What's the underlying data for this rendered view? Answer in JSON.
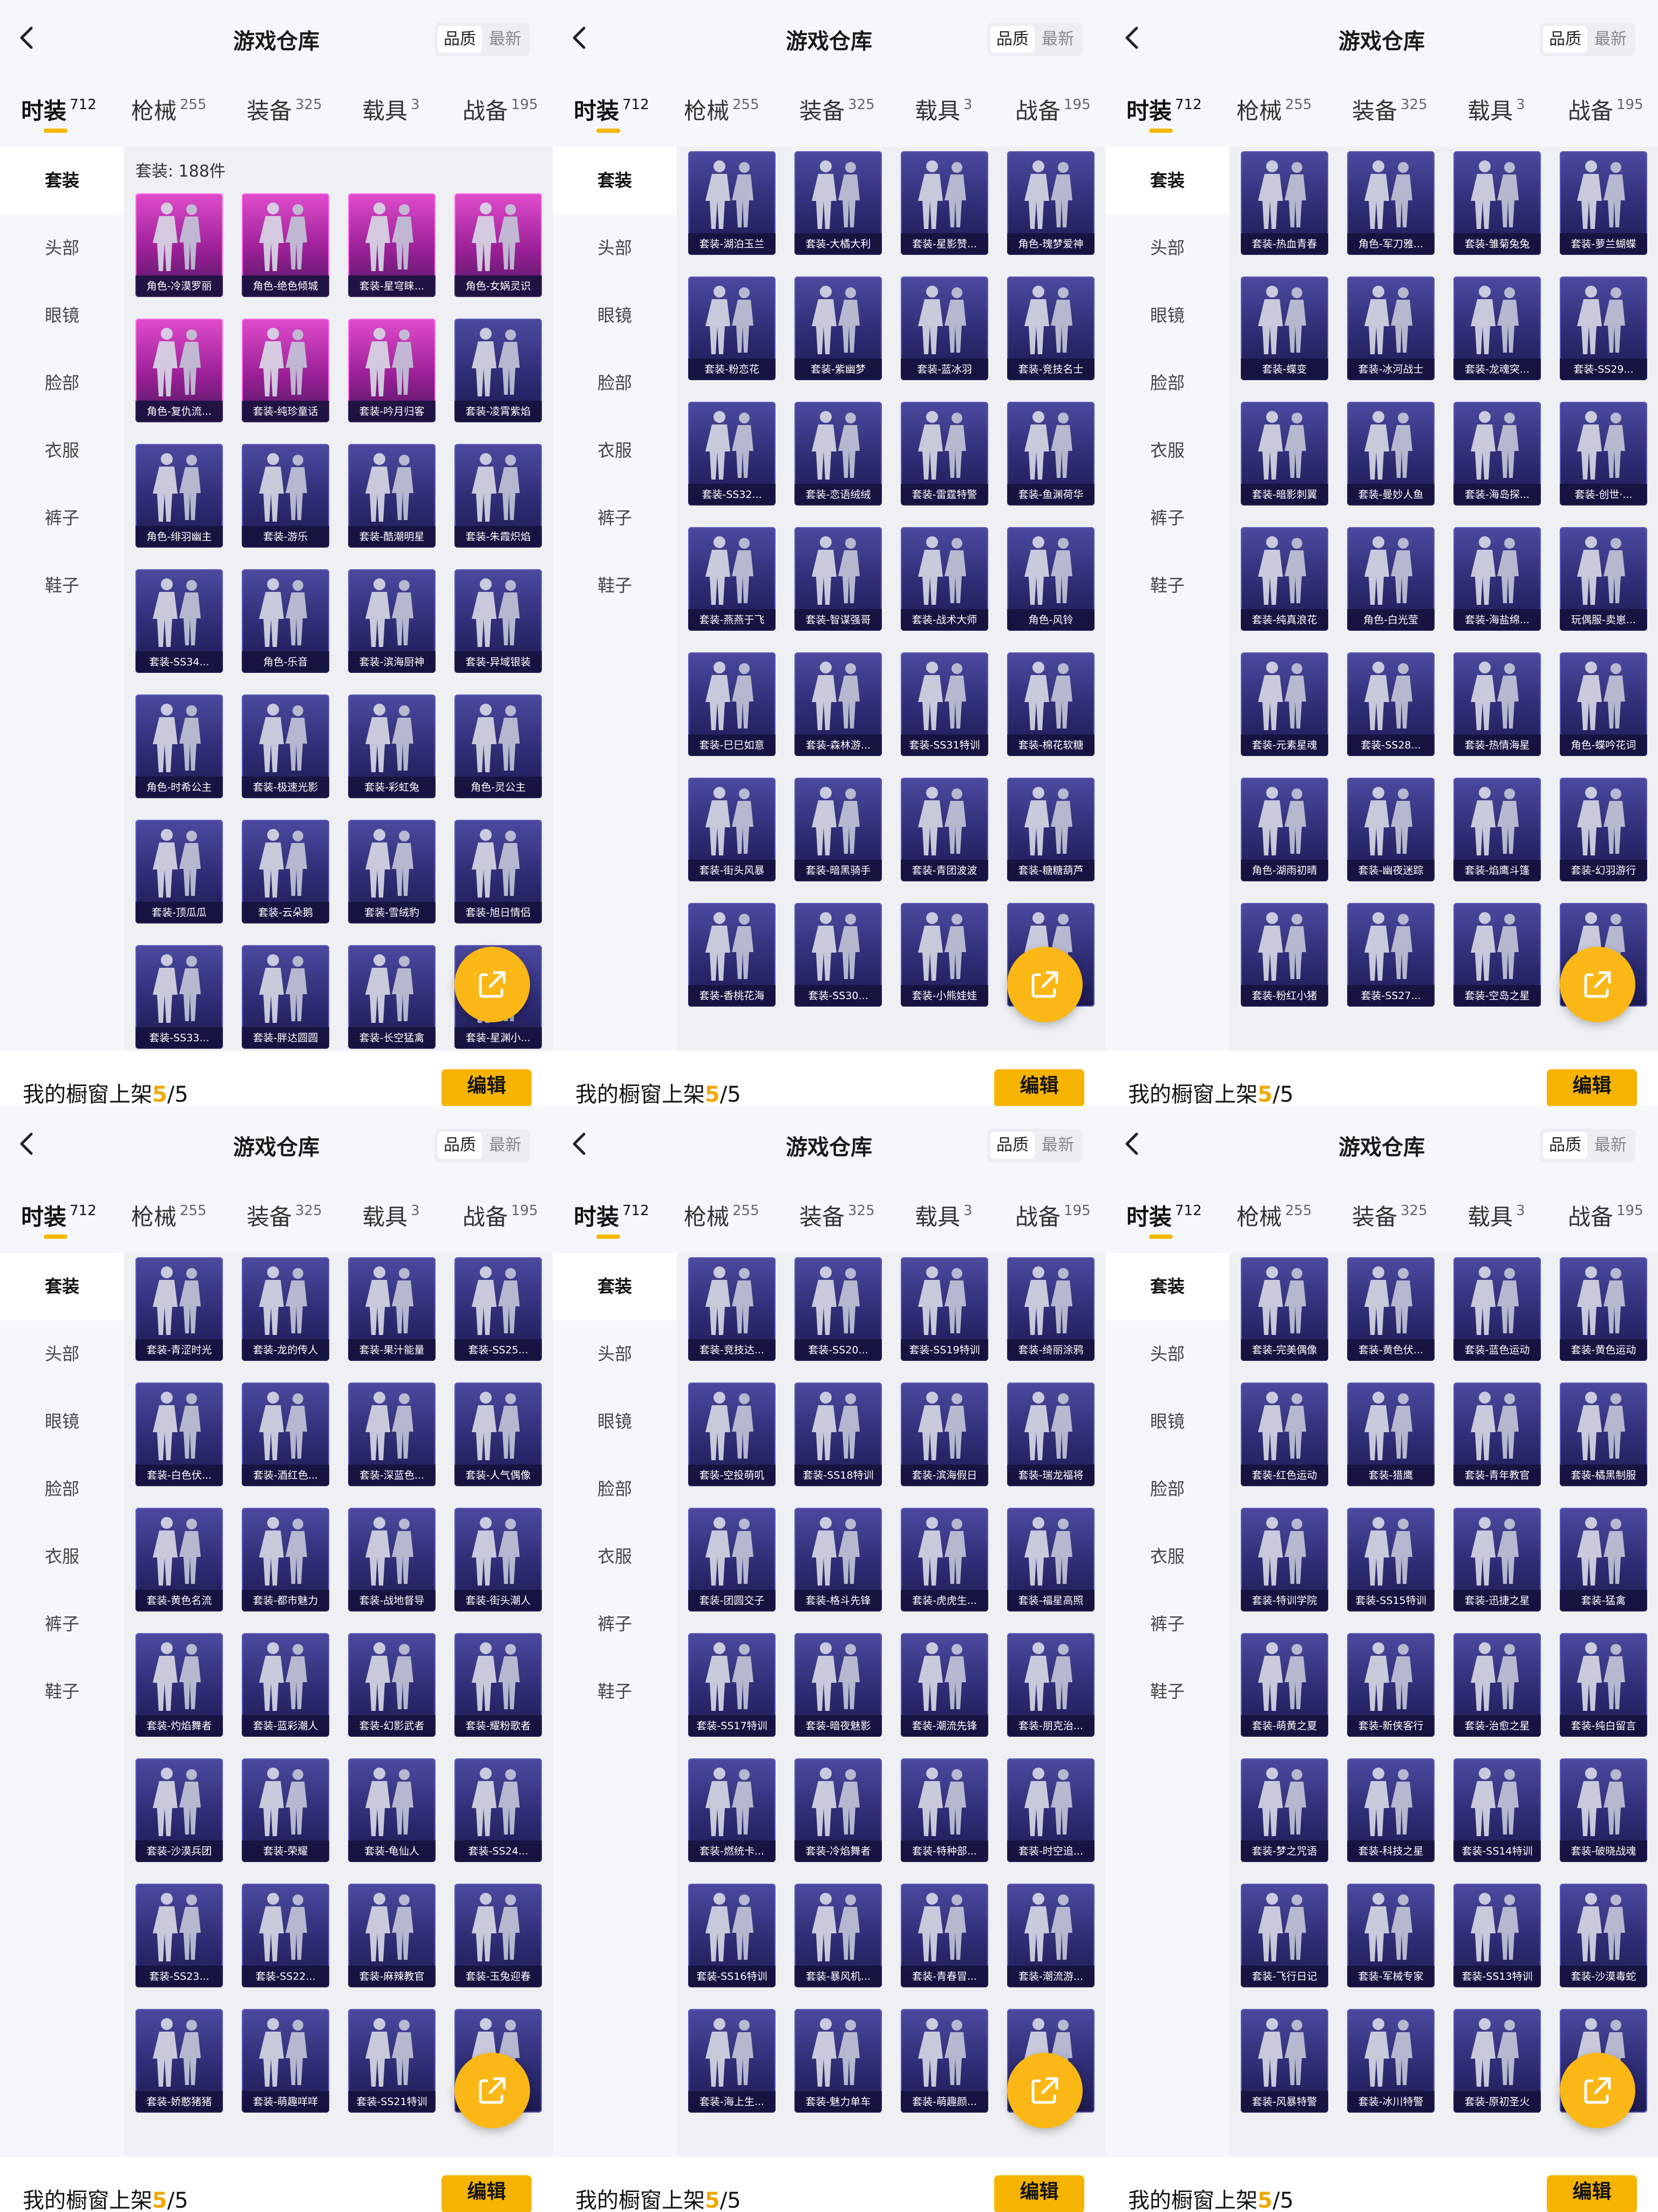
{
  "header": {
    "title": "游戏仓库",
    "sort": [
      "品质",
      "最新"
    ]
  },
  "tabs": [
    {
      "label": "时装",
      "count": 712
    },
    {
      "label": "枪械",
      "count": 255
    },
    {
      "label": "装备",
      "count": 325
    },
    {
      "label": "载具",
      "count": 3
    },
    {
      "label": "战备",
      "count": 195
    }
  ],
  "sidebar": [
    "套装",
    "头部",
    "眼镜",
    "脸部",
    "衣服",
    "裤子",
    "鞋子"
  ],
  "footer": {
    "label": "我的橱窗上架",
    "shown": "5",
    "rest": "/5",
    "button": "编辑"
  },
  "panels": [
    {
      "summary": "套装: 188件",
      "items": [
        "角色-冷漠罗丽",
        "角色-绝色倾城",
        "套装-星穹睐...",
        "角色-女娲灵识",
        "角色-复仇流...",
        "套装-纯珍童话",
        "套装-吟月归客",
        "套装-凌霄紫焰",
        "角色-绯羽幽主",
        "套装-游乐",
        "套装-酷潮明星",
        "套装-朱霞炽焰",
        "套装-SS34...",
        "角色-乐音",
        "套装-滨海厨神",
        "套装-异域银装",
        "角色-时希公主",
        "套装-极速光影",
        "套装-彩虹兔",
        "角色-灵公主",
        "套装-顶瓜瓜",
        "套装-云朵鹅",
        "套装-雪绒豹",
        "套装-旭日情侣",
        "套装-SS33...",
        "套装-胖达圆圆",
        "套装-长空猛禽",
        "套装-星渊小..."
      ]
    },
    {
      "items": [
        "套装-湖泊玉兰",
        "套装-大橘大利",
        "套装-星影赞...",
        "角色-瑰梦爱神",
        "套装-粉恋花",
        "套装-紫幽梦",
        "套装-蓝冰羽",
        "套装-竞技名士",
        "套装-SS32...",
        "套装-恋语绒绒",
        "套装-雷霆特警",
        "套装-鱼渊荷华",
        "套装-燕燕于飞",
        "套装-智谋强哥",
        "套装-战术大师",
        "角色-风铃",
        "套装-巳巳如意",
        "套装-森林游...",
        "套装-SS31特训",
        "套装-棉花软糖",
        "套装-街头风暴",
        "套装-暗黑骑手",
        "套装-青团波波",
        "套装-糖糖葫芦",
        "套装-香桃花海",
        "套装-SS30...",
        "套装-小熊娃娃"
      ]
    },
    {
      "items": [
        "套装-热血青春",
        "角色-军刀雅...",
        "套装-雏菊兔兔",
        "套装-萝兰蝴蝶",
        "套装-蝶变",
        "套装-冰河战士",
        "套装-龙魂突...",
        "套装-SS29...",
        "套装-暗影刺翼",
        "套装-曼妙人鱼",
        "套装-海岛探...",
        "套装-创世·...",
        "套装-纯真浪花",
        "角色-白光莹",
        "套装-海盐绵...",
        "玩偶服-卖崽...",
        "套装-元素星魂",
        "套装-SS28...",
        "套装-热情海星",
        "角色-蝶吟花词",
        "角色-湖雨初晴",
        "套装-幽夜迷踪",
        "套装-焰鹰斗篷",
        "套装-幻羽游行",
        "套装-粉红小猪",
        "套装-SS27...",
        "套装-空岛之星"
      ]
    },
    {
      "items": [
        "套装-青涩时光",
        "套装-龙的传人",
        "套装-果汁能量",
        "套装-SS25...",
        "套装-白色伏...",
        "套装-酒红色...",
        "套装-深蓝色...",
        "套装-人气偶像",
        "套装-黄色名流",
        "套装-都市魅力",
        "套装-战地督导",
        "套装-街头潮人",
        "套装-灼焰舞者",
        "套装-蓝彩潮人",
        "套装-幻影武者",
        "套装-耀粉歌者",
        "套装-沙漠兵团",
        "套装-荣耀",
        "套装-龟仙人",
        "套装-SS24...",
        "套装-SS23...",
        "套装-SS22...",
        "套装-麻辣教官",
        "套装-玉兔迎春",
        "套装-娇憨猪猪",
        "套装-萌趣咩咩",
        "套装-SS21特训"
      ]
    },
    {
      "items": [
        "套装-竞技达...",
        "套装-SS20...",
        "套装-SS19特训",
        "套装-绮丽涂鸦",
        "套装-空投萌叽",
        "套装-SS18特训",
        "套装-滨海假日",
        "套装-瑞龙福将",
        "套装-团圆交子",
        "套装-格斗先锋",
        "套装-虎虎生...",
        "套装-福星高照",
        "套装-SS17特训",
        "套装-暗夜魅影",
        "套装-潮流先锋",
        "套装-朋克治...",
        "套装-燃统卡...",
        "套装-冷焰舞者",
        "套装-特种部...",
        "套装-时空追...",
        "套装-SS16特训",
        "套装-暴风机...",
        "套装-青春冒...",
        "套装-潮流游...",
        "套装-海上生...",
        "套装-魅力单车",
        "套装-萌趣颜..."
      ]
    },
    {
      "items": [
        "套装-完美偶像",
        "套装-黄色伏...",
        "套装-蓝色运动",
        "套装-黄色运动",
        "套装-红色运动",
        "套装-猎鹰",
        "套装-青年教官",
        "套装-橘黑制服",
        "套装-特训学院",
        "套装-SS15特训",
        "套装-迅捷之星",
        "套装-猛禽",
        "套装-萌黄之夏",
        "套装-新侠客行",
        "套装-治愈之星",
        "套装-纯白留言",
        "套装-梦之咒语",
        "套装-科技之星",
        "套装-SS14特训",
        "套装-破晓战魂",
        "套装-飞行日记",
        "套装-军械专家",
        "套装-SS13特训",
        "套装-沙漠毒蛇",
        "套装-风暴特警",
        "套装-冰川特警",
        "套装-原初圣火"
      ]
    }
  ]
}
